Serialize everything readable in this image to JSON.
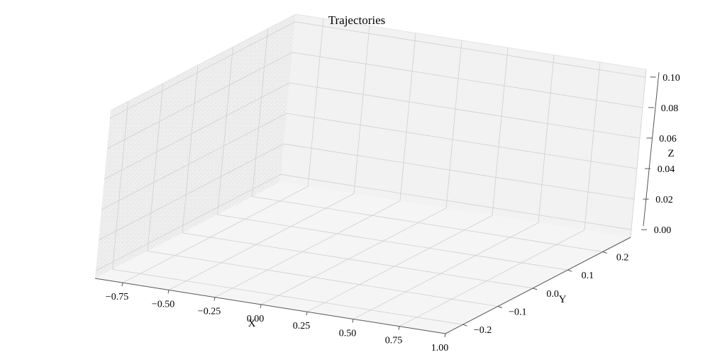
{
  "chart_data": {
    "type": "line",
    "projection": "3d",
    "title": "Trajectories",
    "xlabel": "X",
    "ylabel": "Y",
    "zlabel": "Z",
    "xticks": [
      "−0.75",
      "−0.50",
      "−0.25",
      "0.00",
      "0.25",
      "0.50",
      "0.75",
      "1.00"
    ],
    "yticks": [
      "−0.2",
      "−0.1",
      "0.0",
      "0.1",
      "0.2"
    ],
    "zticks": [
      "0.00",
      "0.02",
      "0.04",
      "0.06",
      "0.08",
      "0.10"
    ],
    "xlim": [
      -0.9,
      1.0
    ],
    "ylim": [
      -0.25,
      0.28
    ],
    "zlim": [
      -0.005,
      0.105
    ],
    "grid": true,
    "series": []
  },
  "colors": {
    "pane_back": "#f2f2f2",
    "pane_left": "#ebebeb",
    "pane_floor": "#f5f5f5",
    "grid": "#cfcfcf",
    "axis_line": "#555555"
  }
}
